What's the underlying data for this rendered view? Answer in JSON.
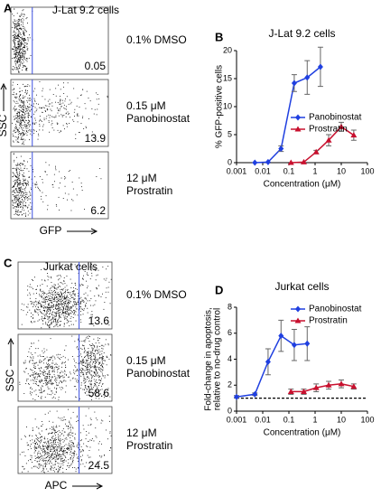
{
  "flow_panels": [
    {
      "label": "A",
      "title": "J-Lat 9.2 cells",
      "y_label": "SSC",
      "x_label": "GFP",
      "rows": [
        {
          "condition": [
            "0.1% DMSO"
          ],
          "value": 0.05
        },
        {
          "condition": [
            "0.15 μM",
            "Panobinostat"
          ],
          "value": 13.9
        },
        {
          "condition": [
            "12 μM",
            "Prostratin"
          ],
          "value": 6.2
        }
      ]
    },
    {
      "label": "C",
      "title": "Jurkat cells",
      "y_label": "SSC",
      "x_label": "APC",
      "rows": [
        {
          "condition": [
            "0.1% DMSO"
          ],
          "value": 13.6
        },
        {
          "condition": [
            "0.15 μM",
            "Panobinostat"
          ],
          "value": 58.6
        },
        {
          "condition": [
            "12 μM",
            "Prostratin"
          ],
          "value": 24.5
        }
      ]
    }
  ],
  "chart_data": [
    {
      "type": "line",
      "label": "B",
      "title": "J-Lat 9.2 cells",
      "x_label": "Concentration (μM)",
      "y_label": [
        "% GFP-positive cells"
      ],
      "log_x": true,
      "xlim": [
        0.001,
        100
      ],
      "xticks": [
        0.001,
        0.01,
        0.1,
        1,
        10,
        100
      ],
      "ylim": [
        0,
        20
      ],
      "yticks": [
        0,
        5,
        10,
        15,
        20
      ],
      "legend": "middle-right",
      "series": [
        {
          "name": "Panobinostat",
          "color": "#1f3fe0",
          "marker": "diamond",
          "x": [
            0.005,
            0.016,
            0.05,
            0.16,
            0.5,
            1.6
          ],
          "values": [
            0,
            0.1,
            2.5,
            14.2,
            15.2,
            17.1
          ],
          "errors": [
            0,
            0,
            0.5,
            1.5,
            3,
            3.5
          ]
        },
        {
          "name": "Prostratin",
          "color": "#c8102e",
          "marker": "triangle",
          "x": [
            0.12,
            0.37,
            1.1,
            3.3,
            10,
            30
          ],
          "values": [
            0,
            0.1,
            1.9,
            4.0,
            6.4,
            4.9
          ],
          "errors": [
            0,
            0,
            0.3,
            1,
            0.8,
            0.9
          ]
        }
      ]
    },
    {
      "type": "line",
      "label": "D",
      "title": "Jurkat cells",
      "x_label": "Concentration (μM)",
      "y_label": [
        "Fold-change in apoptosis,",
        "relative to no-drug control"
      ],
      "log_x": true,
      "xlim": [
        0.001,
        100
      ],
      "xticks": [
        0.001,
        0.01,
        0.1,
        1,
        10,
        100
      ],
      "ylim": [
        0,
        8
      ],
      "yticks": [
        0,
        2,
        4,
        6,
        8
      ],
      "reference_line": 1,
      "legend": "top-right",
      "series": [
        {
          "name": "Panobinostat",
          "color": "#1f3fe0",
          "marker": "diamond",
          "x": [
            0.001,
            0.005,
            0.016,
            0.05,
            0.16,
            0.5
          ],
          "values": [
            1.1,
            1.3,
            3.8,
            5.8,
            5.1,
            5.2
          ],
          "errors": [
            0.1,
            0.1,
            1,
            1.2,
            1.2,
            1.3
          ]
        },
        {
          "name": "Prostratin",
          "color": "#c8102e",
          "marker": "triangle",
          "x": [
            0.12,
            0.37,
            1.1,
            3.3,
            10,
            30
          ],
          "values": [
            1.5,
            1.5,
            1.8,
            2.0,
            2.1,
            1.9
          ],
          "errors": [
            0.2,
            0.2,
            0.3,
            0.3,
            0.3,
            0.2
          ]
        }
      ]
    }
  ]
}
